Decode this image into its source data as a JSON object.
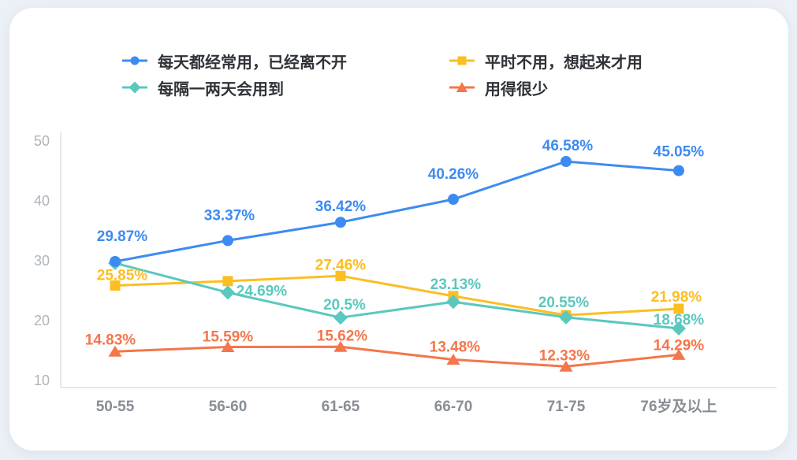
{
  "page": {
    "background_color": "#EDF1F7",
    "card_color": "#FFFFFF"
  },
  "legend": {
    "items": [
      {
        "id": "daily-use",
        "label": "每天都经常用，已经离不开",
        "color": "#3D8BF2",
        "marker": "circle"
      },
      {
        "id": "seldom-think-of",
        "label": "平时不用，想起来才用",
        "color": "#FBBE23",
        "marker": "square"
      },
      {
        "id": "every-1-2-days",
        "label": "每隔一两天会用到",
        "color": "#5AC8BE",
        "marker": "diamond"
      },
      {
        "id": "rarely-use",
        "label": "用得很少",
        "color": "#F4764B",
        "marker": "triangle"
      }
    ]
  },
  "chart_data": {
    "type": "line",
    "title": "",
    "xlabel": "",
    "ylabel": "",
    "categories": [
      "50-55",
      "56-60",
      "61-65",
      "66-70",
      "71-75",
      "76岁及以上"
    ],
    "yticks": [
      10,
      20,
      30,
      40,
      50
    ],
    "ylim": [
      10,
      50
    ],
    "grid": false,
    "legend_position": "top",
    "series": [
      {
        "id": "seldom-think-of",
        "name": "平时不用，想起来才用",
        "color": "#FBBE23",
        "marker": "square",
        "values": [
          25.85,
          26.6,
          27.46,
          24.1,
          20.9,
          21.98
        ],
        "labels": [
          "25.85%",
          null,
          "27.46%",
          null,
          null,
          "21.98%"
        ],
        "label_offsets": [
          [
            9,
            -13
          ],
          null,
          [
            0,
            -14
          ],
          null,
          null,
          [
            -3,
            -15
          ]
        ]
      },
      {
        "id": "every-1-2-days",
        "name": "每隔一两天会用到",
        "color": "#5AC8BE",
        "marker": "diamond",
        "values": [
          29.6,
          24.69,
          20.5,
          23.13,
          20.55,
          18.68
        ],
        "labels": [
          null,
          "24.69%",
          "20.5%",
          "23.13%",
          "20.55%",
          "18.68%"
        ],
        "label_offsets": [
          null,
          [
            43,
            -2
          ],
          [
            5,
            -16
          ],
          [
            3,
            -22
          ],
          [
            -3,
            -19
          ],
          [
            0,
            -11
          ]
        ]
      },
      {
        "id": "rarely-use",
        "name": "用得很少",
        "color": "#F4764B",
        "marker": "triangle",
        "values": [
          14.83,
          15.59,
          15.62,
          13.48,
          12.33,
          14.29
        ],
        "labels": [
          "14.83%",
          "15.59%",
          "15.62%",
          "13.48%",
          "12.33%",
          "14.29%"
        ],
        "label_offsets": [
          [
            -6,
            -15
          ],
          [
            0,
            -13
          ],
          [
            2,
            -14
          ],
          [
            2,
            -16
          ],
          [
            -2,
            -14
          ],
          [
            0,
            -12
          ]
        ]
      },
      {
        "id": "daily-use",
        "name": "每天都经常用，已经离不开",
        "color": "#3D8BF2",
        "marker": "circle",
        "values": [
          29.87,
          33.37,
          36.42,
          40.26,
          46.58,
          45.05
        ],
        "labels": [
          "29.87%",
          "33.37%",
          "36.42%",
          "40.26%",
          "46.58%",
          "45.05%"
        ],
        "label_offsets": [
          [
            9,
            -32
          ],
          [
            2,
            -32
          ],
          [
            0,
            -20
          ],
          [
            0,
            -32
          ],
          [
            2,
            -20
          ],
          [
            0,
            -24
          ]
        ]
      }
    ]
  }
}
